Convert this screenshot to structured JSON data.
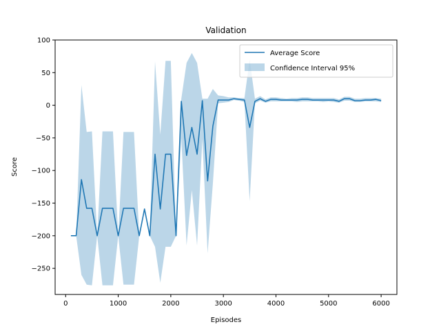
{
  "chart_data": {
    "type": "line",
    "title": "Validation",
    "xlabel": "Episodes",
    "ylabel": "Score",
    "xlim": [
      -200,
      6300
    ],
    "ylim": [
      -290,
      100
    ],
    "xticks": [
      0,
      1000,
      2000,
      3000,
      4000,
      5000,
      6000
    ],
    "yticks": [
      -250,
      -200,
      -150,
      -100,
      -50,
      0,
      50,
      100
    ],
    "legend_position": "top-right",
    "colors": {
      "line": "#1f77b4",
      "band": "#1f77b4"
    },
    "series": [
      {
        "name": "Average Score",
        "kind": "line",
        "x": [
          100,
          200,
          300,
          400,
          500,
          600,
          700,
          800,
          900,
          1000,
          1100,
          1200,
          1300,
          1400,
          1500,
          1600,
          1700,
          1800,
          1900,
          2000,
          2100,
          2200,
          2300,
          2400,
          2500,
          2600,
          2700,
          2800,
          2900,
          3000,
          3100,
          3200,
          3300,
          3400,
          3500,
          3600,
          3700,
          3800,
          3900,
          4000,
          4100,
          4200,
          4300,
          4400,
          4500,
          4600,
          4700,
          4800,
          4900,
          5000,
          5100,
          5200,
          5300,
          5400,
          5500,
          5600,
          5700,
          5800,
          5900,
          6000
        ],
        "values": [
          -200,
          -200,
          -114,
          -158,
          -158,
          -200,
          -158,
          -158,
          -158,
          -200,
          -158,
          -158,
          -158,
          -200,
          -159,
          -200,
          -75,
          -159,
          -75,
          -75,
          -200,
          6,
          -77,
          -34,
          -75,
          7,
          -116,
          -32,
          8,
          8,
          8,
          10,
          9,
          8,
          -34,
          6,
          10,
          6,
          9,
          9,
          8,
          8,
          8,
          8,
          9,
          9,
          8,
          8,
          8,
          8,
          8,
          6,
          10,
          10,
          7,
          7,
          8,
          8,
          9,
          7
        ]
      },
      {
        "name": "Confidence Interval 95%",
        "kind": "band",
        "x": [
          100,
          200,
          300,
          400,
          500,
          600,
          700,
          800,
          900,
          1000,
          1100,
          1200,
          1300,
          1400,
          1500,
          1600,
          1700,
          1800,
          1900,
          2000,
          2100,
          2200,
          2300,
          2400,
          2500,
          2600,
          2700,
          2800,
          2900,
          3000,
          3100,
          3200,
          3300,
          3400,
          3500,
          3600,
          3700,
          3800,
          3900,
          4000,
          4100,
          4200,
          4300,
          4400,
          4500,
          4600,
          4700,
          4800,
          4900,
          5000,
          5100,
          5200,
          5300,
          5400,
          5500,
          5600,
          5700,
          5800,
          5900,
          6000
        ],
        "lower": [
          -200,
          -200,
          -260,
          -275,
          -276,
          -200,
          -276,
          -276,
          -276,
          -200,
          -275,
          -275,
          -275,
          -200,
          -159,
          -200,
          -217,
          -272,
          -217,
          -217,
          -200,
          -51,
          -215,
          -130,
          -215,
          -52,
          -227,
          -120,
          3,
          4,
          5,
          8,
          7,
          5,
          -147,
          3,
          7,
          4,
          6,
          6,
          6,
          6,
          6,
          5,
          6,
          6,
          6,
          6,
          5,
          6,
          5,
          4,
          7,
          7,
          5,
          5,
          6,
          6,
          6,
          5
        ],
        "upper": [
          -200,
          -200,
          31,
          -41,
          -40,
          -200,
          -40,
          -40,
          -40,
          -200,
          -41,
          -41,
          -41,
          -200,
          -159,
          -200,
          67,
          -45,
          68,
          68,
          -200,
          10,
          65,
          80,
          65,
          10,
          10,
          25,
          15,
          14,
          12,
          12,
          11,
          11,
          70,
          10,
          14,
          9,
          12,
          12,
          11,
          10,
          11,
          11,
          12,
          12,
          11,
          11,
          11,
          11,
          11,
          9,
          13,
          13,
          10,
          10,
          11,
          11,
          11,
          10
        ]
      }
    ]
  }
}
